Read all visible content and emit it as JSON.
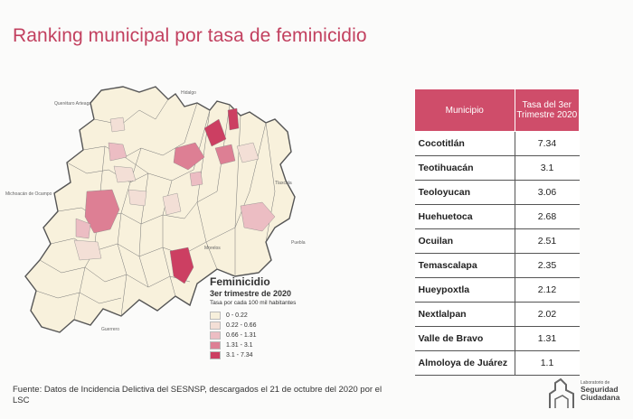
{
  "title": "Ranking municipal por tasa de feminicidio",
  "map": {
    "neighbor_labels": [
      "Querétaro Arteaga",
      "Hidalgo",
      "Michoacán de Ocampo",
      "Tlaxcala",
      "Puebla",
      "Morelos",
      "Guerrero"
    ]
  },
  "legend": {
    "title": "Feminicidio",
    "subtitle": "3er trimestre de 2020",
    "note": "Tasa por cada 100 mil habitantes",
    "classes": [
      {
        "label": "0 - 0.22",
        "color": "#f7f0dc"
      },
      {
        "label": "0.22 - 0.66",
        "color": "#f3dfd6"
      },
      {
        "label": "0.66 - 1.31",
        "color": "#ecbdc3"
      },
      {
        "label": "1.31 - 3.1",
        "color": "#dd7f94"
      },
      {
        "label": "3.1 - 7.34",
        "color": "#cc3f62"
      }
    ]
  },
  "table": {
    "header_municipio": "Municipio",
    "header_tasa": "Tasa del 3er Trimestre 2020",
    "rows": [
      {
        "municipio": "Cocotitlán",
        "tasa": "7.34"
      },
      {
        "municipio": "Teotihuacán",
        "tasa": "3.1"
      },
      {
        "municipio": "Teoloyucan",
        "tasa": "3.06"
      },
      {
        "municipio": "Huehuetoca",
        "tasa": "2.68"
      },
      {
        "municipio": "Ocuilan",
        "tasa": "2.51"
      },
      {
        "municipio": "Temascalapa",
        "tasa": "2.35"
      },
      {
        "municipio": "Hueypoxtla",
        "tasa": "2.12"
      },
      {
        "municipio": "Nextlalpan",
        "tasa": "2.02"
      },
      {
        "municipio": "Valle de Bravo",
        "tasa": "1.31"
      },
      {
        "municipio": "Almoloya de Juárez",
        "tasa": "1.1"
      }
    ]
  },
  "footer": "Fuente: Datos de Incidencia Delictiva del SESNSP, descargados el 21 de octubre del 2020 por el LSC",
  "logo": {
    "small": "Laboratorio de",
    "line1": "Seguridad",
    "line2": "Ciudadana"
  }
}
